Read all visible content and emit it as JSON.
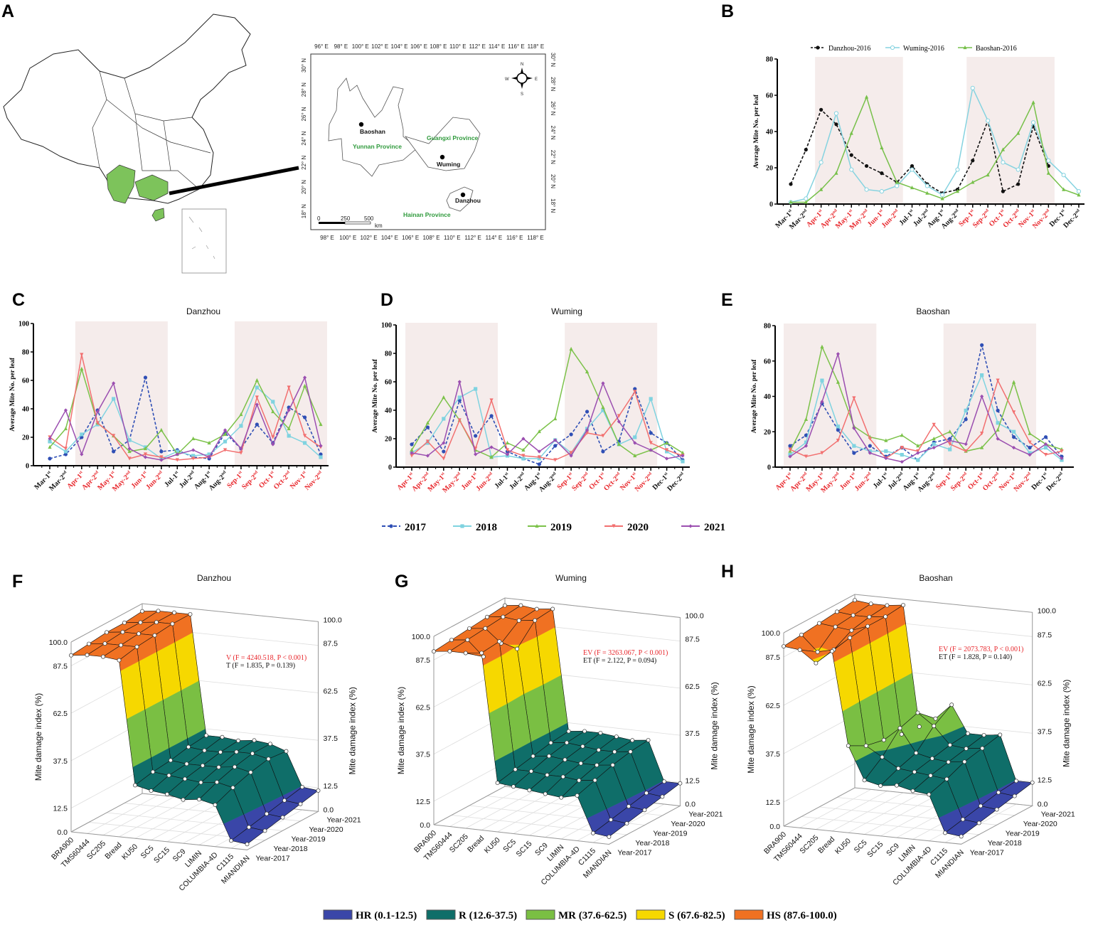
{
  "panel_labels": {
    "A": "A",
    "B": "B",
    "C": "C",
    "D": "D",
    "E": "E",
    "F": "F",
    "G": "G",
    "H": "H"
  },
  "map": {
    "top_lon_labels": [
      "96° E",
      "98° E",
      "100° E",
      "102° E",
      "104° E",
      "106° E",
      "108° E",
      "110° E",
      "112° E",
      "114° E",
      "116° E",
      "118° E"
    ],
    "bottom_lon_labels": [
      "98° E",
      "100° E",
      "102° E",
      "104° E",
      "106° E",
      "108° E",
      "110° E",
      "112° E",
      "114° E",
      "116° E",
      "118° E"
    ],
    "left_lat_labels": [
      "30° N",
      "28° N",
      "26° N",
      "24° N",
      "22° N",
      "20° N",
      "18° N"
    ],
    "right_lat_labels": [
      "30° N",
      "28° N",
      "26° N",
      "24° N",
      "22° N",
      "20° N",
      "18° N"
    ],
    "cities": {
      "baoshan": "Baoshan",
      "wuming": "Wuming",
      "danzhou": "Danzhou"
    },
    "provinces": {
      "yunnan": "Yunnan Province",
      "guangxi": "Guangxi Province",
      "hainan": "Hainan Province"
    },
    "scale": {
      "t0": "0",
      "t1": "250",
      "t2": "500",
      "unit": "km"
    },
    "compass": {
      "n": "N",
      "e": "E",
      "s": "S",
      "w": "W"
    },
    "colors": {
      "highlight": "#7dc35b",
      "province_label": "#2f9a3c"
    }
  },
  "series_legend": [
    {
      "label": "2017",
      "color": "#2f4fb5",
      "marker": "circle",
      "dash": true
    },
    {
      "label": "2018",
      "color": "#7fd3e0",
      "marker": "square",
      "dash": false
    },
    {
      "label": "2019",
      "color": "#7cc24a",
      "marker": "triangle",
      "dash": false
    },
    {
      "label": "2020",
      "color": "#f27070",
      "marker": "triangle-down",
      "dash": false
    },
    {
      "label": "2021",
      "color": "#9b4fb0",
      "marker": "diamond",
      "dash": false
    }
  ],
  "damage_legend": [
    {
      "label": "HR (0.1-12.5)",
      "color": "#3a46a8"
    },
    {
      "label": "R (12.6-37.5)",
      "color": "#0f6e69"
    },
    {
      "label": "MR (37.6-62.5)",
      "color": "#7abf43"
    },
    {
      "label": "S (67.6-82.5)",
      "color": "#f6d800"
    },
    {
      "label": "HS (87.6-100.0)",
      "color": "#f07122"
    }
  ],
  "chart_data": [
    {
      "panel": "B",
      "type": "line",
      "title": "",
      "ylabel": "Average Mite No. per leaf",
      "ylim": [
        0,
        80
      ],
      "yticks": [
        0,
        20,
        40,
        60,
        80
      ],
      "shade_color": "#f5eceb",
      "highlight_label_color": "#e8262b",
      "categories": [
        "Mar-1st",
        "Mar-2nd",
        "Apr-1st",
        "Apr-2nd",
        "May-1st",
        "May-2nd",
        "Jun-1st",
        "Jun-2nd",
        "Jul-1st",
        "Jul-2nd",
        "Aug-1st",
        "Aug-2nd",
        "Sep-1st",
        "Sep-2nd",
        "Oct-1st",
        "Oct-2nd",
        "Nov-1st",
        "Nov-2nd",
        "Dec-1st",
        "Dec-2nd"
      ],
      "shaded": [
        [
          "Apr-1st",
          "Jun-2nd"
        ],
        [
          "Sep-1st",
          "Nov-2nd"
        ]
      ],
      "legend": "top",
      "series": [
        {
          "name": "Danzhou-2016",
          "color": "#111111",
          "marker": "circle",
          "dash": true,
          "values": [
            11,
            30,
            52,
            44,
            27,
            21,
            17,
            12,
            21,
            11,
            6,
            8,
            24,
            46,
            7,
            11,
            43,
            21,
            null,
            null
          ]
        },
        {
          "name": "Wuming-2016",
          "color": "#86d3e0",
          "marker": "open-circle",
          "dash": false,
          "values": [
            1,
            3,
            23,
            50,
            19,
            8,
            7,
            10,
            19,
            10,
            5,
            19,
            64,
            46,
            23,
            19,
            45,
            24,
            16,
            7
          ]
        },
        {
          "name": "Baoshan-2016",
          "color": "#77c04a",
          "marker": "triangle",
          "dash": false,
          "values": [
            1,
            1,
            8,
            17,
            39,
            59,
            31,
            12,
            9,
            6,
            3,
            7,
            12,
            16,
            30,
            39,
            56,
            17,
            8,
            5
          ]
        }
      ]
    },
    {
      "panel": "C",
      "type": "line",
      "title": "Danzhou",
      "ylabel": "Average Mite No. per leaf",
      "ylim": [
        0,
        100
      ],
      "yticks": [
        0,
        20,
        40,
        60,
        80,
        100
      ],
      "shade_color": "#f5eceb",
      "highlight_label_color": "#e8262b",
      "categories": [
        "Mar-1st",
        "Mar-2nd",
        "Apr-1st",
        "Apr-2nd",
        "May-1st",
        "May-2nd",
        "Jun-1st",
        "Jun-2nd",
        "Jul-1st",
        "Jul-2nd",
        "Aug-1st",
        "Aug-2nd",
        "Sep-1st",
        "Sep-2nd",
        "Oct-1st",
        "Oct-2nd",
        "Nov-1st",
        "Nov-2nd"
      ],
      "shaded": [
        [
          "Apr-1st",
          "Jun-2nd"
        ],
        [
          "Sep-1st",
          "Nov-2nd"
        ]
      ],
      "series": [
        {
          "name": "2017",
          "values": [
            5,
            8,
            20,
            39,
            10,
            18,
            62,
            10,
            11,
            6,
            5,
            23,
            12,
            29,
            16,
            41,
            34,
            8
          ]
        },
        {
          "name": "2018",
          "values": [
            17,
            10,
            22,
            29,
            47,
            18,
            13,
            5,
            10,
            7,
            8,
            17,
            28,
            55,
            45,
            21,
            16,
            6
          ]
        },
        {
          "name": "2019",
          "values": [
            13,
            26,
            68,
            30,
            21,
            10,
            12,
            25,
            8,
            19,
            16,
            22,
            36,
            60,
            38,
            26,
            56,
            29
          ]
        },
        {
          "name": "2020",
          "values": [
            20,
            12,
            78,
            30,
            21,
            5,
            8,
            6,
            4,
            5,
            6,
            11,
            9,
            48,
            20,
            55,
            21,
            13
          ]
        },
        {
          "name": "2021",
          "values": [
            19,
            39,
            8,
            38,
            58,
            12,
            6,
            4,
            8,
            11,
            6,
            25,
            12,
            43,
            15,
            39,
            62,
            14
          ]
        }
      ]
    },
    {
      "panel": "D",
      "type": "line",
      "title": "Wuming",
      "ylabel": "Average Mite No. per leaf",
      "ylim": [
        0,
        100
      ],
      "yticks": [
        0,
        20,
        40,
        60,
        80,
        100
      ],
      "shade_color": "#f5eceb",
      "highlight_label_color": "#e8262b",
      "categories": [
        "Apr-1st",
        "Apr-2nd",
        "May-1st",
        "May-2nd",
        "Jun-1st",
        "Jun-2nd",
        "Jul-1st",
        "Jul-2nd",
        "Aug-1st",
        "Aug-2nd",
        "Sep-1st",
        "Sep-2nd",
        "Oct-1st",
        "Oct-2nd",
        "Nov-1st",
        "Nov-2nd",
        "Dec-1st",
        "Dec-2nd"
      ],
      "shaded": [
        [
          "Apr-1st",
          "Jun-2nd"
        ],
        [
          "Sep-1st",
          "Nov-2nd"
        ]
      ],
      "series": [
        {
          "name": "2017",
          "values": [
            16,
            28,
            11,
            47,
            22,
            36,
            11,
            6,
            2,
            15,
            23,
            39,
            11,
            18,
            55,
            24,
            17,
            5
          ]
        },
        {
          "name": "2018",
          "values": [
            10,
            17,
            34,
            49,
            55,
            7,
            8,
            6,
            6,
            19,
            10,
            27,
            40,
            16,
            21,
            48,
            11,
            4
          ]
        },
        {
          "name": "2019",
          "values": [
            12,
            31,
            49,
            33,
            12,
            7,
            17,
            12,
            25,
            34,
            83,
            67,
            42,
            16,
            8,
            12,
            17,
            10
          ]
        },
        {
          "name": "2020",
          "values": [
            8,
            18,
            6,
            33,
            13,
            47,
            12,
            8,
            7,
            5,
            10,
            24,
            22,
            36,
            53,
            17,
            12,
            8
          ]
        },
        {
          "name": "2021",
          "values": [
            10,
            8,
            17,
            60,
            9,
            14,
            9,
            20,
            11,
            19,
            8,
            26,
            59,
            32,
            17,
            12,
            6,
            8
          ]
        }
      ]
    },
    {
      "panel": "E",
      "type": "line",
      "title": "Baoshan",
      "ylabel": "Average Mite No. per leaf",
      "ylim": [
        0,
        80
      ],
      "yticks": [
        0,
        20,
        40,
        60,
        80
      ],
      "shade_color": "#f5eceb",
      "highlight_label_color": "#e8262b",
      "categories": [
        "Apr-1st",
        "Apr-2nd",
        "May-1st",
        "May-2nd",
        "Jun-1st",
        "Jun-2nd",
        "Jul-1st",
        "Jul-2nd",
        "Aug-1st",
        "Aug-2nd",
        "Sep-1st",
        "Sep-2nd",
        "Oct-1st",
        "Oct-2nd",
        "Nov-1st",
        "Nov-2nd",
        "Dec-1st",
        "Dec-2nd"
      ],
      "shaded": [
        [
          "Apr-1st",
          "Jun-2nd"
        ],
        [
          "Sep-1st",
          "Nov-2nd"
        ]
      ],
      "series": [
        {
          "name": "2017",
          "values": [
            12,
            18,
            36,
            21,
            8,
            12,
            6,
            11,
            4,
            14,
            16,
            27,
            69,
            32,
            17,
            11,
            17,
            6
          ]
        },
        {
          "name": "2018",
          "values": [
            7,
            14,
            49,
            23,
            12,
            9,
            9,
            7,
            4,
            13,
            10,
            32,
            52,
            25,
            20,
            8,
            11,
            4
          ]
        },
        {
          "name": "2019",
          "values": [
            9,
            27,
            68,
            48,
            23,
            17,
            15,
            18,
            12,
            16,
            20,
            9,
            11,
            21,
            48,
            19,
            13,
            10
          ]
        },
        {
          "name": "2020",
          "values": [
            10,
            6,
            8,
            15,
            39,
            16,
            5,
            11,
            9,
            24,
            13,
            9,
            19,
            49,
            31,
            14,
            7,
            9
          ]
        },
        {
          "name": "2021",
          "values": [
            6,
            12,
            37,
            64,
            22,
            8,
            5,
            3,
            8,
            11,
            15,
            13,
            40,
            16,
            11,
            7,
            13,
            5
          ]
        }
      ]
    },
    {
      "panel": "F",
      "type": "surface3d",
      "title": "Danzhou",
      "zlabel": "Mite damage index (%)",
      "zlim": [
        0,
        100
      ],
      "zticks_left": [
        "0.0",
        "12.5",
        "37.5",
        "62.5",
        "87.5",
        "100.0"
      ],
      "zticks_right": [
        "0.0",
        "12.5",
        "37.5",
        "62.5",
        "87.5",
        "100.0"
      ],
      "varieties": [
        "BRA900",
        "TMS60444",
        "SC205",
        "Bread",
        "KU50",
        "SC5",
        "SC15",
        "SC9",
        "LIMIN",
        "COLUMBIA-4D",
        "C1115",
        "MIANDIAN"
      ],
      "years": [
        "Year-2017",
        "Year-2018",
        "Year-2019",
        "Year-2020",
        "Year-2021"
      ],
      "annotation": {
        "line1": "V (F = 4240.518, P < 0.001)",
        "line2": "T (F = 1.835, P = 0.139)",
        "line1_color": "#e8262b"
      },
      "values": [
        [
          93,
          94,
          95,
          95,
          96
        ],
        [
          94,
          95,
          96,
          96,
          97
        ],
        [
          94,
          95,
          96,
          97,
          97
        ],
        [
          93,
          95,
          96,
          97,
          97
        ],
        [
          28,
          30,
          31,
          33,
          34
        ],
        [
          26,
          29,
          30,
          32,
          34
        ],
        [
          25,
          28,
          30,
          32,
          33
        ],
        [
          23,
          27,
          30,
          33,
          34
        ],
        [
          24,
          28,
          31,
          33,
          33
        ],
        [
          22,
          26,
          29,
          31,
          30
        ],
        [
          4,
          6,
          8,
          10,
          12
        ],
        [
          3,
          5,
          7,
          9,
          11
        ]
      ]
    },
    {
      "panel": "G",
      "type": "surface3d",
      "title": "Wuming",
      "zlabel": "Mite damage index (%)",
      "zlim": [
        0,
        100
      ],
      "zticks_left": [
        "0.0",
        "12.5",
        "37.5",
        "62.5",
        "87.5",
        "100.0"
      ],
      "zticks_right": [
        "0.0",
        "12.5",
        "37.5",
        "62.5",
        "87.5",
        "100.0"
      ],
      "varieties": [
        "BRA900",
        "TMS60444",
        "SC205",
        "Bread",
        "KU50",
        "SC5",
        "SC15",
        "SC9",
        "LIMIN",
        "COLUMBIA-4D",
        "C1115",
        "MIANDIAN"
      ],
      "years": [
        "Year-2017",
        "Year-2018",
        "Year-2019",
        "Year-2020",
        "Year-2021"
      ],
      "annotation": {
        "line1": "EV (F = 3263.067, P < 0.001)",
        "line2": "ET (F = 2.122, P = 0.094)",
        "line1_color": "#e8262b"
      },
      "values": [
        [
          92,
          93,
          94,
          95,
          96
        ],
        [
          93,
          94,
          95,
          96,
          97
        ],
        [
          93,
          86,
          88,
          95,
          96
        ],
        [
          94,
          95,
          86,
          96,
          97
        ],
        [
          26,
          28,
          30,
          32,
          33
        ],
        [
          25,
          28,
          31,
          33,
          34
        ],
        [
          24,
          27,
          30,
          32,
          34
        ],
        [
          23,
          27,
          29,
          31,
          33
        ],
        [
          22,
          26,
          29,
          31,
          32
        ],
        [
          24,
          27,
          30,
          32,
          33
        ],
        [
          5,
          7,
          9,
          11,
          12
        ],
        [
          4,
          6,
          8,
          10,
          12
        ]
      ]
    },
    {
      "panel": "H",
      "type": "surface3d",
      "title": "Baoshan",
      "zlabel": "Mite damage index (%)",
      "zlim": [
        0,
        100
      ],
      "zticks_left": [
        "0.0",
        "12.5",
        "37.5",
        "62.5",
        "87.5",
        "100.0"
      ],
      "zticks_right": [
        "0.0",
        "12.5",
        "37.5",
        "62.5",
        "87.5",
        "100.0"
      ],
      "varieties": [
        "BRA900",
        "TMS60444",
        "SC205",
        "Bread",
        "KU50",
        "SC5",
        "SC15",
        "SC9",
        "LIMIN",
        "COLUMBIA-4D",
        "C1115",
        "MIANDIAN"
      ],
      "years": [
        "Year-2017",
        "Year-2018",
        "Year-2019",
        "Year-2020",
        "Year-2021"
      ],
      "annotation": {
        "line1": "EV (F = 2073.783, P < 0.001)",
        "line2": "ET (F = 1.828, P = 0.140)",
        "line1_color": "#e8262b"
      },
      "values": [
        [
          93,
          94,
          95,
          96,
          97
        ],
        [
          92,
          86,
          94,
          95,
          96
        ],
        [
          86,
          88,
          93,
          95,
          96
        ],
        [
          93,
          95,
          96,
          96,
          97
        ],
        [
          45,
          40,
          38,
          36,
          35
        ],
        [
          28,
          35,
          45,
          48,
          40
        ],
        [
          26,
          30,
          33,
          42,
          48
        ],
        [
          27,
          29,
          31,
          33,
          34
        ],
        [
          25,
          28,
          30,
          32,
          34
        ],
        [
          24,
          27,
          31,
          33,
          35
        ],
        [
          5,
          7,
          9,
          11,
          12
        ],
        [
          4,
          6,
          8,
          10,
          12
        ]
      ]
    }
  ]
}
